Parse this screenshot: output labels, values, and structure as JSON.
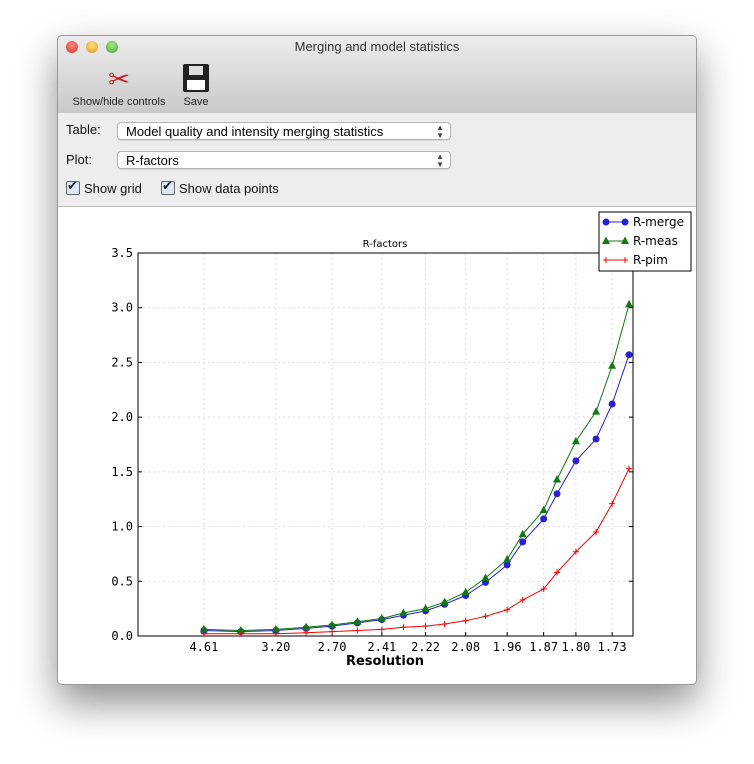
{
  "window": {
    "title": "Merging and model statistics"
  },
  "toolbar": {
    "show_hide_label": "Show/hide controls",
    "save_label": "Save"
  },
  "controls": {
    "table_label": "Table:",
    "table_value": "Model quality and intensity merging statistics",
    "plot_label": "Plot:",
    "plot_value": "R-factors",
    "show_grid_label": "Show grid",
    "show_grid": true,
    "show_points_label": "Show data points",
    "show_points": true
  },
  "chart_data": {
    "type": "line",
    "title": "R-factors",
    "xlabel": "Resolution",
    "ylabel": "",
    "x_scale": "1/d^2 (reciprocal resolution squared)",
    "x": [
      4.61,
      3.7,
      3.2,
      2.9,
      2.7,
      2.54,
      2.41,
      2.31,
      2.22,
      2.15,
      2.08,
      2.02,
      1.96,
      1.92,
      1.87,
      1.84,
      1.8,
      1.76,
      1.73,
      1.7
    ],
    "xticks": [
      "4.61",
      "3.20",
      "2.70",
      "2.41",
      "2.22",
      "2.08",
      "1.96",
      "1.87",
      "1.80",
      "1.73"
    ],
    "yticks": [
      "0.0",
      "0.5",
      "1.0",
      "1.5",
      "2.0",
      "2.5",
      "3.0",
      "3.5"
    ],
    "ylim": [
      0,
      3.5
    ],
    "grid": true,
    "legend": "top-right",
    "series": [
      {
        "name": "R-merge",
        "color": "#2a1fd6",
        "marker": "circle",
        "values": [
          0.05,
          0.04,
          0.05,
          0.07,
          0.09,
          0.12,
          0.15,
          0.19,
          0.23,
          0.29,
          0.37,
          0.49,
          0.65,
          0.86,
          1.07,
          1.3,
          1.6,
          1.8,
          2.12,
          2.57
        ]
      },
      {
        "name": "R-meas",
        "color": "#107a10",
        "marker": "triangle",
        "values": [
          0.06,
          0.05,
          0.06,
          0.08,
          0.1,
          0.13,
          0.16,
          0.21,
          0.25,
          0.31,
          0.4,
          0.53,
          0.7,
          0.93,
          1.15,
          1.43,
          1.78,
          2.05,
          2.47,
          3.03
        ]
      },
      {
        "name": "R-pim",
        "color": "#ff0000",
        "marker": "plus",
        "values": [
          0.02,
          0.02,
          0.02,
          0.03,
          0.04,
          0.05,
          0.06,
          0.08,
          0.09,
          0.11,
          0.14,
          0.18,
          0.24,
          0.33,
          0.43,
          0.58,
          0.77,
          0.95,
          1.21,
          1.53
        ]
      }
    ]
  }
}
